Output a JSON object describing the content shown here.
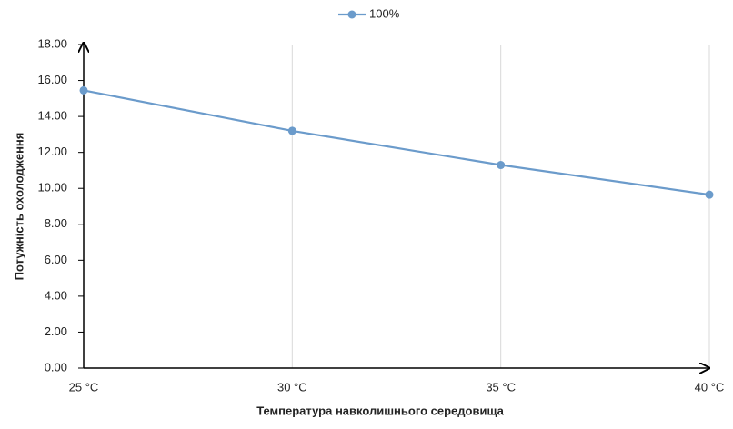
{
  "chart_data": {
    "type": "line",
    "x_label": "Температура навколишнього середовища",
    "y_label": "Потужність охолодження",
    "categories": [
      "25 °C",
      "30 °C",
      "35 °C",
      "40 °C"
    ],
    "series": [
      {
        "name": "100%",
        "color": "#6b9bcb",
        "values": [
          15.45,
          13.2,
          11.3,
          9.65
        ]
      }
    ],
    "ylim": [
      0,
      18
    ],
    "yticks": [
      {
        "value": 0,
        "label": "0.00"
      },
      {
        "value": 2,
        "label": "2.00"
      },
      {
        "value": 4,
        "label": "4.00"
      },
      {
        "value": 6,
        "label": "6.00"
      },
      {
        "value": 8,
        "label": "8.00"
      },
      {
        "value": 10,
        "label": "10.00"
      },
      {
        "value": 12,
        "label": "12.00"
      },
      {
        "value": 14,
        "label": "14.00"
      },
      {
        "value": 16,
        "label": "16.00"
      },
      {
        "value": 18,
        "label": "18.00"
      }
    ],
    "grid": true,
    "legend": "top"
  }
}
